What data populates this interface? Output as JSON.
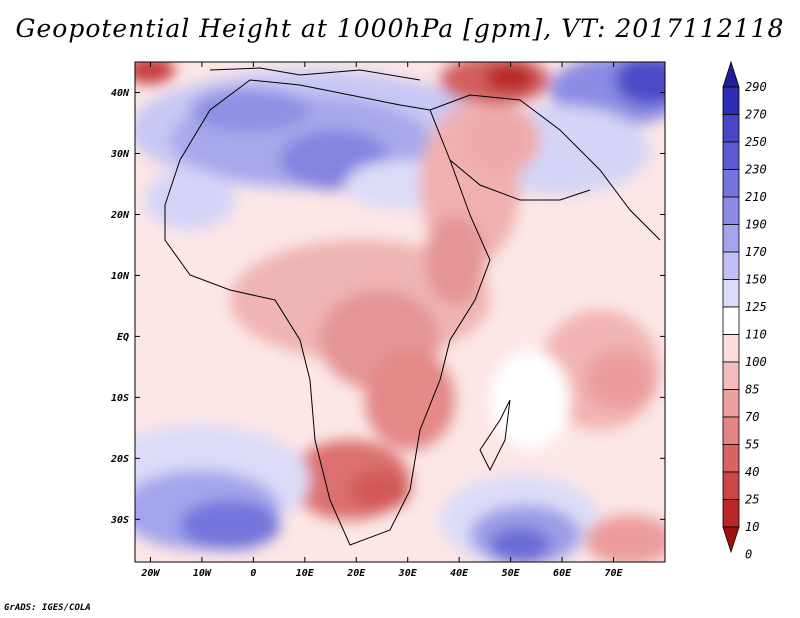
{
  "title": "Geopotential Height at 1000hPa [gpm], VT: 2017112118",
  "credit": "GrADS: IGES/COLA",
  "map": {
    "lon_range": [
      -23,
      80
    ],
    "lat_range": [
      -37,
      45
    ],
    "lat_labels": [
      {
        "lat": 40,
        "label": "40N"
      },
      {
        "lat": 30,
        "label": "30N"
      },
      {
        "lat": 20,
        "label": "20N"
      },
      {
        "lat": 10,
        "label": "10N"
      },
      {
        "lat": 0,
        "label": "EQ"
      },
      {
        "lat": -10,
        "label": "10S"
      },
      {
        "lat": -20,
        "label": "20S"
      },
      {
        "lat": -30,
        "label": "30S"
      }
    ],
    "lon_labels": [
      {
        "lon": -20,
        "label": "20W"
      },
      {
        "lon": -10,
        "label": "10W"
      },
      {
        "lon": 0,
        "label": "0"
      },
      {
        "lon": 10,
        "label": "10E"
      },
      {
        "lon": 20,
        "label": "20E"
      },
      {
        "lon": 30,
        "label": "30E"
      },
      {
        "lon": 40,
        "label": "40E"
      },
      {
        "lon": 50,
        "label": "50E"
      },
      {
        "lon": 60,
        "label": "60E"
      },
      {
        "lon": 70,
        "label": "70E"
      }
    ]
  },
  "colorbar": {
    "levels": [
      "290",
      "270",
      "250",
      "230",
      "210",
      "190",
      "170",
      "150",
      "125",
      "110",
      "100",
      "85",
      "70",
      "55",
      "40",
      "25",
      "10",
      "0"
    ],
    "colors": [
      "#1e1e96",
      "#2c2cb4",
      "#4646c8",
      "#5c5cd2",
      "#7474dc",
      "#8c8ce4",
      "#a4a4ec",
      "#c0c0f4",
      "#dcdcf8",
      "#ffffff",
      "#fadcdc",
      "#f4bcbc",
      "#eca0a0",
      "#e48484",
      "#d86464",
      "#cc4646",
      "#b82828",
      "#a01010"
    ]
  }
}
